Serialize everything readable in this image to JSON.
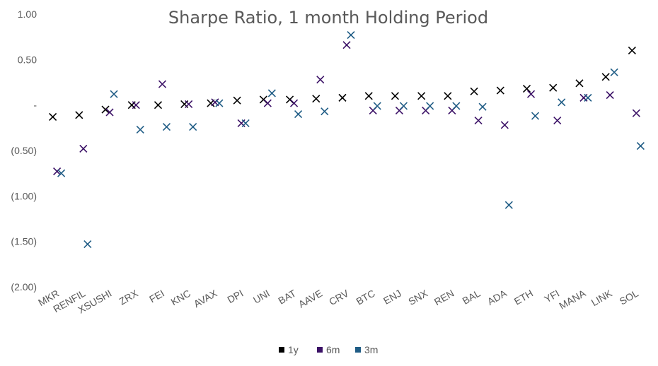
{
  "chart_data": {
    "type": "scatter",
    "title": "Sharpe Ratio, 1 month Holding Period",
    "xlabel": "",
    "ylabel": "",
    "ylim": [
      -2.0,
      1.0
    ],
    "yticks": [
      {
        "value": 1.0,
        "label": "1.00"
      },
      {
        "value": 0.5,
        "label": "0.50"
      },
      {
        "value": 0.0,
        "label": "-"
      },
      {
        "value": -0.5,
        "label": "(0.50)"
      },
      {
        "value": -1.0,
        "label": "(1.00)"
      },
      {
        "value": -1.5,
        "label": "(1.50)"
      },
      {
        "value": -2.0,
        "label": "(2.00)"
      }
    ],
    "grid": false,
    "legend_position": "bottom",
    "marker": "x",
    "categories": [
      "MKR",
      "RENFIL",
      "XSUSHI",
      "ZRX",
      "FEI",
      "KNC",
      "AVAX",
      "DPI",
      "UNI",
      "BAT",
      "AAVE",
      "CRV",
      "BTC",
      "ENJ",
      "SNX",
      "REN",
      "BAL",
      "ADA",
      "ETH",
      "YFI",
      "MANA",
      "LINK",
      "SOL"
    ],
    "series": [
      {
        "name": "1y",
        "color": "#000000",
        "values": [
          -0.13,
          -0.11,
          -0.05,
          0.0,
          0.0,
          0.01,
          0.02,
          0.05,
          0.06,
          0.06,
          0.07,
          0.08,
          0.1,
          0.1,
          0.1,
          0.1,
          0.15,
          0.16,
          0.18,
          0.19,
          0.24,
          0.31,
          0.6
        ]
      },
      {
        "name": "6m",
        "color": "#3b1166",
        "values": [
          -0.73,
          -0.48,
          -0.08,
          0.0,
          0.23,
          0.01,
          0.03,
          -0.2,
          0.02,
          0.02,
          0.28,
          0.66,
          -0.06,
          -0.06,
          -0.06,
          -0.06,
          -0.17,
          -0.22,
          0.12,
          -0.17,
          0.08,
          0.11,
          -0.09
        ]
      },
      {
        "name": "3m",
        "color": "#1f5c85",
        "values": [
          -0.75,
          -1.53,
          0.12,
          -0.27,
          -0.24,
          -0.24,
          0.02,
          -0.2,
          0.13,
          -0.1,
          -0.07,
          0.77,
          -0.01,
          -0.01,
          -0.01,
          -0.01,
          -0.02,
          -1.1,
          -0.12,
          0.03,
          0.08,
          0.36,
          -0.45
        ]
      }
    ]
  }
}
